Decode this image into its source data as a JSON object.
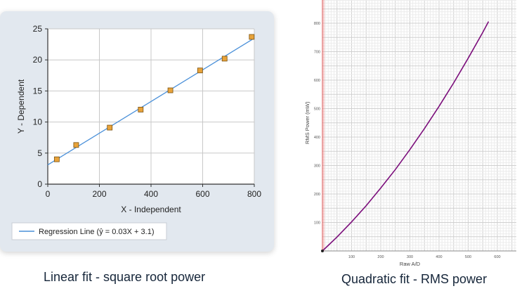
{
  "chart_data": [
    {
      "type": "scatter",
      "xlabel": "X - Independent",
      "ylabel": "Y - Dependent",
      "xlim": [
        0,
        800
      ],
      "ylim": [
        0,
        25
      ],
      "xticks": [
        0,
        200,
        400,
        600,
        800
      ],
      "yticks": [
        0,
        5,
        10,
        15,
        20,
        25
      ],
      "grid": true,
      "legend_position": "bottom-left",
      "series": [
        {
          "name": "",
          "type": "scatter",
          "x": [
            35,
            110,
            240,
            360,
            475,
            590,
            685,
            790
          ],
          "y": [
            4.0,
            6.3,
            9.1,
            12.0,
            15.1,
            18.3,
            20.2,
            23.7
          ],
          "color": "#e8a33a"
        },
        {
          "name": "Regression Line (ŷ = 0.03X + 3.1)",
          "type": "line",
          "x": [
            0,
            800
          ],
          "y": [
            3.1,
            23.5
          ],
          "color": "#4a90d9"
        }
      ],
      "caption": "Linear fit - square root power"
    },
    {
      "type": "line",
      "xlabel": "Raw A/D",
      "ylabel": "RMS Power (mW)",
      "xlim": [
        0,
        700
      ],
      "ylim": [
        0,
        900
      ],
      "xticks": [
        100,
        200,
        300,
        400,
        500,
        600
      ],
      "yticks": [
        100,
        200,
        300,
        400,
        500,
        600,
        700,
        800
      ],
      "grid": true,
      "series": [
        {
          "name": "",
          "x": [
            0,
            50,
            100,
            150,
            200,
            250,
            300,
            350,
            400,
            450,
            500,
            550,
            570
          ],
          "y": [
            0,
            49,
            102,
            159,
            221,
            286,
            356,
            430,
            508,
            590,
            677,
            768,
            806
          ],
          "color": "#7b0d7b"
        }
      ],
      "vertical_line": {
        "x": 0,
        "color": "#d94a4a"
      },
      "caption": "Quadratic fit - RMS power"
    }
  ]
}
